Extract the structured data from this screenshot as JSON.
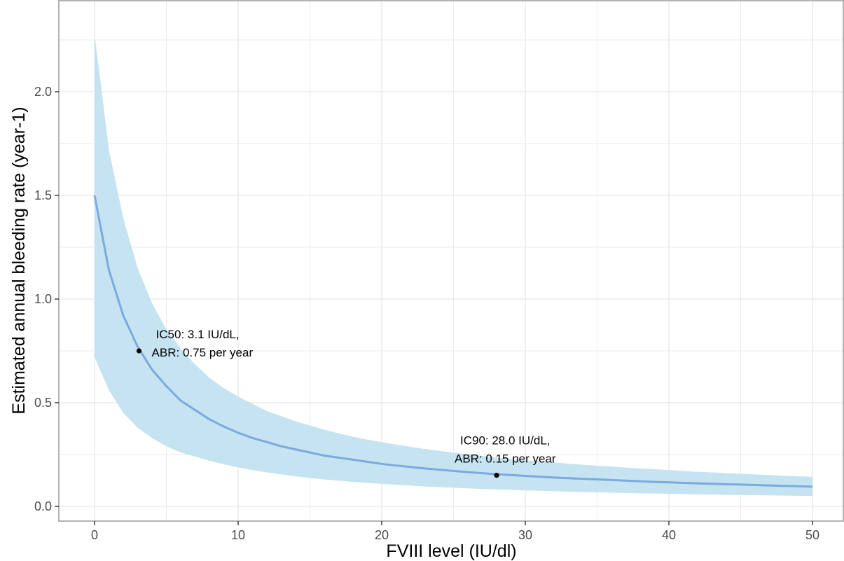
{
  "chart_data": {
    "type": "line",
    "title": "",
    "xlabel": "FVIII level (IU/dl)",
    "ylabel": "Estimated annual bleeding rate (year-1)",
    "xlim": [
      -2.5,
      52.5
    ],
    "ylim": [
      -0.075,
      2.3
    ],
    "x_ticks": [
      0,
      10,
      20,
      30,
      40,
      50
    ],
    "x_tick_labels": [
      "0",
      "10",
      "20",
      "30",
      "40",
      "50"
    ],
    "y_ticks": [
      0.0,
      0.5,
      1.0,
      1.5,
      2.0
    ],
    "y_tick_labels": [
      "0.0",
      "0.5",
      "1.0",
      "1.5",
      "2.0"
    ],
    "grid": true,
    "legend": "none",
    "colors": {
      "line": "#7aaadf",
      "ribbon": "#c6e3f1",
      "grid": "#ebebeb",
      "frame": "#b3b3b3",
      "point": "#000000"
    },
    "series": [
      {
        "name": "",
        "x": [
          0,
          1,
          2,
          3,
          4,
          5,
          6,
          7,
          8,
          9,
          10,
          11,
          12,
          13,
          14,
          15,
          16,
          17,
          18,
          19,
          20,
          21,
          22,
          23,
          24,
          25,
          26,
          27,
          28,
          29,
          30,
          31,
          32,
          33,
          34,
          35,
          36,
          37,
          38,
          39,
          40,
          41,
          42,
          43,
          44,
          45,
          46,
          47,
          48,
          49,
          50
        ],
        "y": [
          1.5,
          1.14,
          0.92,
          0.77,
          0.66,
          0.58,
          0.51,
          0.465,
          0.42,
          0.385,
          0.355,
          0.33,
          0.31,
          0.29,
          0.275,
          0.26,
          0.245,
          0.235,
          0.225,
          0.215,
          0.205,
          0.197,
          0.19,
          0.183,
          0.177,
          0.171,
          0.165,
          0.16,
          0.155,
          0.151,
          0.147,
          0.143,
          0.139,
          0.136,
          0.133,
          0.13,
          0.127,
          0.124,
          0.121,
          0.118,
          0.116,
          0.113,
          0.111,
          0.109,
          0.107,
          0.105,
          0.103,
          0.101,
          0.099,
          0.097,
          0.095
        ],
        "upper": [
          2.28,
          1.72,
          1.39,
          1.15,
          0.98,
          0.855,
          0.76,
          0.685,
          0.62,
          0.57,
          0.53,
          0.495,
          0.46,
          0.435,
          0.41,
          0.39,
          0.37,
          0.352,
          0.336,
          0.322,
          0.31,
          0.298,
          0.287,
          0.277,
          0.268,
          0.259,
          0.251,
          0.243,
          0.236,
          0.229,
          0.223,
          0.217,
          0.212,
          0.206,
          0.201,
          0.196,
          0.192,
          0.187,
          0.183,
          0.179,
          0.175,
          0.171,
          0.167,
          0.164,
          0.16,
          0.157,
          0.154,
          0.151,
          0.148,
          0.145,
          0.143
        ],
        "lower": [
          0.72,
          0.56,
          0.45,
          0.38,
          0.33,
          0.29,
          0.26,
          0.24,
          0.22,
          0.203,
          0.188,
          0.175,
          0.164,
          0.154,
          0.145,
          0.137,
          0.13,
          0.124,
          0.118,
          0.113,
          0.108,
          0.104,
          0.1,
          0.096,
          0.093,
          0.09,
          0.087,
          0.084,
          0.082,
          0.08,
          0.077,
          0.075,
          0.073,
          0.071,
          0.069,
          0.068,
          0.066,
          0.065,
          0.063,
          0.062,
          0.061,
          0.059,
          0.058,
          0.057,
          0.056,
          0.055,
          0.054,
          0.053,
          0.052,
          0.051,
          0.05
        ]
      }
    ],
    "points": [
      {
        "x": 3.1,
        "y": 0.75
      },
      {
        "x": 28.0,
        "y": 0.15
      }
    ],
    "annotations": [
      {
        "lines": [
          "IC50: 3.1 IU/dL,",
          "ABR: 0.75 per year"
        ],
        "x": 3.1,
        "y": 0.75
      },
      {
        "lines": [
          "IC90: 28.0 IU/dL,",
          "ABR: 0.15 per year"
        ],
        "x": 28.0,
        "y": 0.15
      }
    ]
  }
}
